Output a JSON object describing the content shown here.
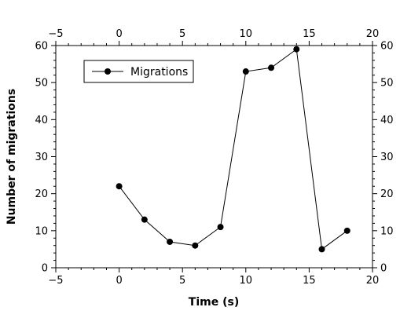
{
  "chart_data": {
    "type": "line",
    "title": "",
    "xlabel": "Time (s)",
    "ylabel": "Number of migrations",
    "xlim": [
      -5,
      20
    ],
    "ylim": [
      0,
      60
    ],
    "x_major_ticks": [
      -5,
      0,
      5,
      10,
      15,
      20
    ],
    "x_tick_labels": [
      "−5",
      "0",
      "5",
      "10",
      "15",
      "20"
    ],
    "y_major_ticks": [
      0,
      10,
      20,
      30,
      40,
      50,
      60
    ],
    "y_tick_labels": [
      "0",
      "10",
      "20",
      "30",
      "40",
      "50",
      "60"
    ],
    "x_minor_step": 1,
    "y_minor_step": 2,
    "mirror_axes": true,
    "grid": false,
    "legend_position": "top-left",
    "series": [
      {
        "name": "Migrations",
        "color": "#000000",
        "marker": "circle",
        "x": [
          0,
          2,
          4,
          6,
          8,
          10,
          12,
          14,
          16,
          18
        ],
        "y": [
          22,
          13,
          7,
          6,
          11,
          53,
          54,
          59,
          5,
          10
        ]
      }
    ]
  }
}
